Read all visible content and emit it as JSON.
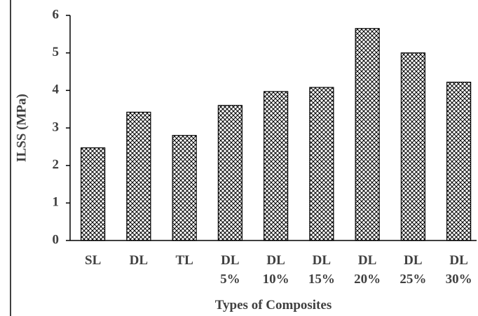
{
  "chart_data": {
    "type": "bar",
    "x_label": "Types of Composites",
    "y_label": "ILSS (MPa)",
    "categories": [
      "SL",
      "DL",
      "TL",
      "DL\n5%",
      "DL\n10%",
      "DL\n15%",
      "DL\n20%",
      "DL\n25%",
      "DL\n30%"
    ],
    "values": [
      2.47,
      3.42,
      2.8,
      3.6,
      3.97,
      4.08,
      5.65,
      5.0,
      4.22
    ],
    "color": "#000000",
    "ylim": [
      0,
      6
    ],
    "yticks": [
      0,
      1,
      2,
      3,
      4,
      5,
      6
    ]
  }
}
